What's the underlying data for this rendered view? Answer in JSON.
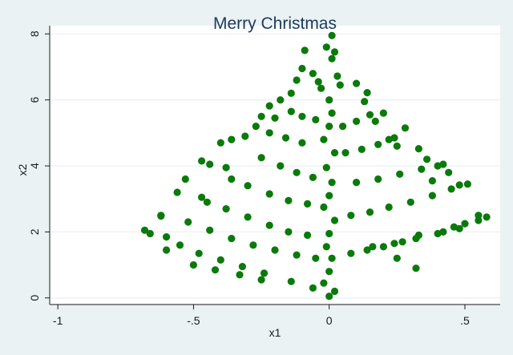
{
  "chart_data": {
    "type": "scatter",
    "title": "Merry Christmas",
    "xlabel": "x1",
    "ylabel": "x2",
    "xlim": [
      -1.03,
      0.63
    ],
    "ylim": [
      -0.2,
      8.25
    ],
    "x_ticks": [
      -1,
      -0.5,
      0,
      0.5
    ],
    "x_tick_labels": [
      "-1",
      "-.5",
      "0",
      ".5"
    ],
    "y_ticks": [
      0,
      2,
      4,
      6,
      8
    ],
    "y_tick_labels": [
      "0",
      "2",
      "4",
      "6",
      "8"
    ],
    "grid": true,
    "legend": "none",
    "marker_color": "#0a7a0a",
    "series": [
      {
        "points": [
          [
            0.01,
            7.95
          ],
          [
            -0.01,
            7.6
          ],
          [
            0.02,
            7.45
          ],
          [
            0.01,
            7.25
          ],
          [
            -0.09,
            7.5
          ],
          [
            -0.1,
            6.95
          ],
          [
            -0.06,
            6.8
          ],
          [
            0.03,
            6.72
          ],
          [
            -0.04,
            6.55
          ],
          [
            -0.12,
            6.6
          ],
          [
            0.1,
            6.5
          ],
          [
            0.14,
            6.22
          ],
          [
            -0.14,
            6.2
          ],
          [
            -0.18,
            6.0
          ],
          [
            -0.22,
            5.82
          ],
          [
            0.13,
            5.95
          ],
          [
            0.2,
            5.6
          ],
          [
            -0.25,
            5.5
          ],
          [
            0.17,
            5.35
          ],
          [
            0.28,
            5.15
          ],
          [
            -0.2,
            5.45
          ],
          [
            -0.27,
            5.2
          ],
          [
            -0.31,
            4.9
          ],
          [
            0.22,
            4.8
          ],
          [
            0.25,
            4.6
          ],
          [
            0.33,
            4.52
          ],
          [
            -0.36,
            4.8
          ],
          [
            -0.4,
            4.7
          ],
          [
            -0.47,
            4.15
          ],
          [
            -0.44,
            4.05
          ],
          [
            -0.38,
            3.95
          ],
          [
            -0.53,
            3.6
          ],
          [
            -0.56,
            3.2
          ],
          [
            -0.47,
            3.05
          ],
          [
            0.36,
            4.2
          ],
          [
            0.4,
            4.0
          ],
          [
            0.44,
            3.8
          ],
          [
            0.38,
            3.55
          ],
          [
            0.48,
            3.42
          ],
          [
            0.51,
            3.45
          ],
          [
            0.55,
            2.5
          ],
          [
            0.58,
            2.45
          ],
          [
            0.5,
            2.25
          ],
          [
            0.46,
            2.15
          ],
          [
            0.42,
            2.0
          ],
          [
            0.33,
            1.9
          ],
          [
            0.27,
            1.7
          ],
          [
            0.2,
            1.55
          ],
          [
            0.14,
            1.45
          ],
          [
            0.08,
            1.35
          ],
          [
            -0.62,
            2.5
          ],
          [
            -0.68,
            2.05
          ],
          [
            -0.66,
            1.95
          ],
          [
            -0.6,
            1.85
          ],
          [
            -0.55,
            1.6
          ],
          [
            -0.48,
            1.35
          ],
          [
            -0.4,
            1.15
          ],
          [
            -0.32,
            0.95
          ],
          [
            -0.24,
            0.75
          ],
          [
            -0.14,
            0.5
          ],
          [
            -0.06,
            0.3
          ],
          [
            0.0,
            0.05
          ],
          [
            0.02,
            0.2
          ],
          [
            -0.02,
            0.45
          ],
          [
            0.0,
            0.8
          ],
          [
            0.01,
            1.2
          ],
          [
            -0.01,
            1.55
          ],
          [
            0.0,
            1.95
          ],
          [
            0.02,
            2.35
          ],
          [
            -0.02,
            2.75
          ],
          [
            0.0,
            3.1
          ],
          [
            0.01,
            3.5
          ],
          [
            -0.01,
            3.95
          ],
          [
            0.02,
            4.4
          ],
          [
            -0.02,
            4.8
          ],
          [
            0.0,
            5.2
          ],
          [
            0.01,
            5.6
          ],
          [
            0.0,
            6.0
          ],
          [
            -0.03,
            6.35
          ],
          [
            0.04,
            6.45
          ],
          [
            -0.62,
            2.48
          ],
          [
            -0.52,
            2.3
          ],
          [
            -0.44,
            2.05
          ],
          [
            -0.36,
            1.8
          ],
          [
            -0.28,
            1.6
          ],
          [
            -0.2,
            1.45
          ],
          [
            -0.12,
            1.3
          ],
          [
            -0.05,
            1.2
          ],
          [
            -0.45,
            2.9
          ],
          [
            -0.38,
            2.7
          ],
          [
            -0.3,
            2.45
          ],
          [
            -0.22,
            2.2
          ],
          [
            -0.15,
            2.0
          ],
          [
            -0.08,
            1.9
          ],
          [
            -0.36,
            3.6
          ],
          [
            -0.3,
            3.4
          ],
          [
            -0.22,
            3.15
          ],
          [
            -0.15,
            2.95
          ],
          [
            -0.08,
            2.85
          ],
          [
            -0.25,
            4.25
          ],
          [
            -0.18,
            4.0
          ],
          [
            -0.12,
            3.8
          ],
          [
            -0.06,
            3.65
          ],
          [
            0.45,
            3.3
          ],
          [
            0.38,
            3.1
          ],
          [
            0.3,
            2.9
          ],
          [
            0.22,
            2.75
          ],
          [
            0.15,
            2.6
          ],
          [
            0.08,
            2.5
          ],
          [
            0.42,
            4.05
          ],
          [
            0.34,
            3.9
          ],
          [
            0.26,
            3.75
          ],
          [
            0.18,
            3.6
          ],
          [
            0.1,
            3.5
          ],
          [
            0.24,
            4.85
          ],
          [
            0.18,
            4.65
          ],
          [
            0.12,
            4.5
          ],
          [
            0.06,
            4.4
          ],
          [
            0.15,
            5.55
          ],
          [
            0.1,
            5.35
          ],
          [
            0.05,
            5.2
          ],
          [
            0.55,
            2.35
          ],
          [
            0.48,
            2.1
          ],
          [
            0.4,
            1.95
          ],
          [
            0.32,
            1.8
          ],
          [
            0.24,
            1.65
          ],
          [
            0.16,
            1.55
          ],
          [
            -0.22,
            5.0
          ],
          [
            -0.16,
            4.85
          ],
          [
            -0.1,
            4.7
          ],
          [
            -0.14,
            5.65
          ],
          [
            -0.1,
            5.5
          ],
          [
            -0.05,
            5.4
          ],
          [
            0.32,
            0.9
          ],
          [
            -0.5,
            1.0
          ],
          [
            -0.6,
            1.45
          ],
          [
            -0.42,
            0.85
          ],
          [
            -0.33,
            0.7
          ],
          [
            -0.25,
            0.55
          ],
          [
            0.25,
            1.2
          ]
        ]
      }
    ]
  }
}
